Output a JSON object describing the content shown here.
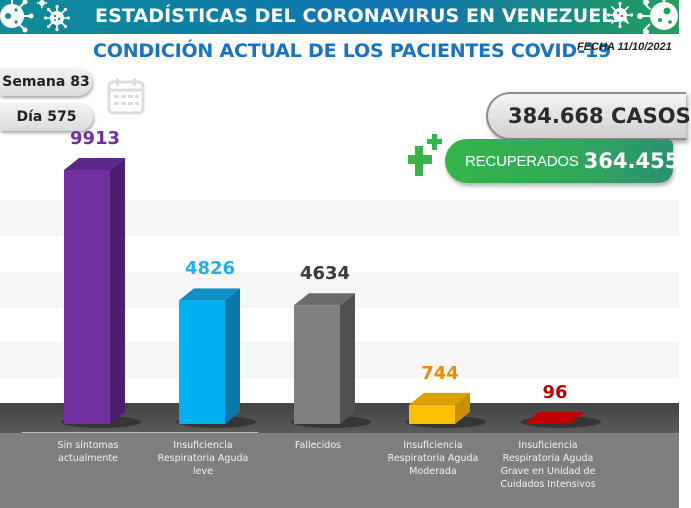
{
  "header": {
    "title": "ESTADÍSTICAS DEL CORONAVIRUS EN VENEZUELA",
    "subtitle": "CONDICIÓN ACTUAL DE LOS PACIENTES COVID-19",
    "date": "FECHA 11/10/2021",
    "icons": [
      "virus-icon",
      "virus-icon",
      "virus-icon",
      "virus-icon"
    ]
  },
  "info": {
    "week": "Semana 83",
    "day": "Día 575",
    "calendar_icon": "calendar-icon"
  },
  "summary": {
    "cases": "384.668 CASOS",
    "recovered_label": "RECUPERADOS",
    "recovered_value": "364.455",
    "plus_icon": "plus-icon"
  },
  "colors": {
    "banner": "#0f8c96",
    "subtitle": "#1a73c2",
    "recovered": "#36b54a"
  },
  "chart_data": {
    "type": "bar",
    "title": "CONDICIÓN ACTUAL DE LOS PACIENTES COVID-19",
    "xlabel": "",
    "ylabel": "",
    "ylim": [
      0,
      10000
    ],
    "grid": true,
    "legend": "none",
    "categories": [
      "Sin síntomas\nactualmente",
      "Insuficiencia\nRespiratoria Aguda\nleve",
      "Fallecidos",
      "Insuficiencia\nRespiratoria Aguda\nModerada",
      "Insuficiencia\nRespiratoria Aguda\nGrave en Unidad de\nCuidados Intensivos"
    ],
    "values": [
      9913,
      4826,
      4634,
      744,
      96
    ],
    "value_labels": [
      "9913",
      "4826",
      "4634",
      "744",
      "96"
    ],
    "bar_colors": [
      "#7030a0",
      "#00b0f0",
      "#808080",
      "#ffc000",
      "#c00000"
    ],
    "side_colors": [
      "#4b1f6e",
      "#0a78a8",
      "#505050",
      "#c89000",
      "#7a0000"
    ],
    "top_colors": [
      "#5d2789",
      "#0f8fc4",
      "#6a6a6a",
      "#d9a300",
      "#a30000"
    ],
    "label_colors": [
      "#7030a0",
      "#1fb0ea",
      "#3a3a3a",
      "#f08a00",
      "#c00000"
    ]
  }
}
